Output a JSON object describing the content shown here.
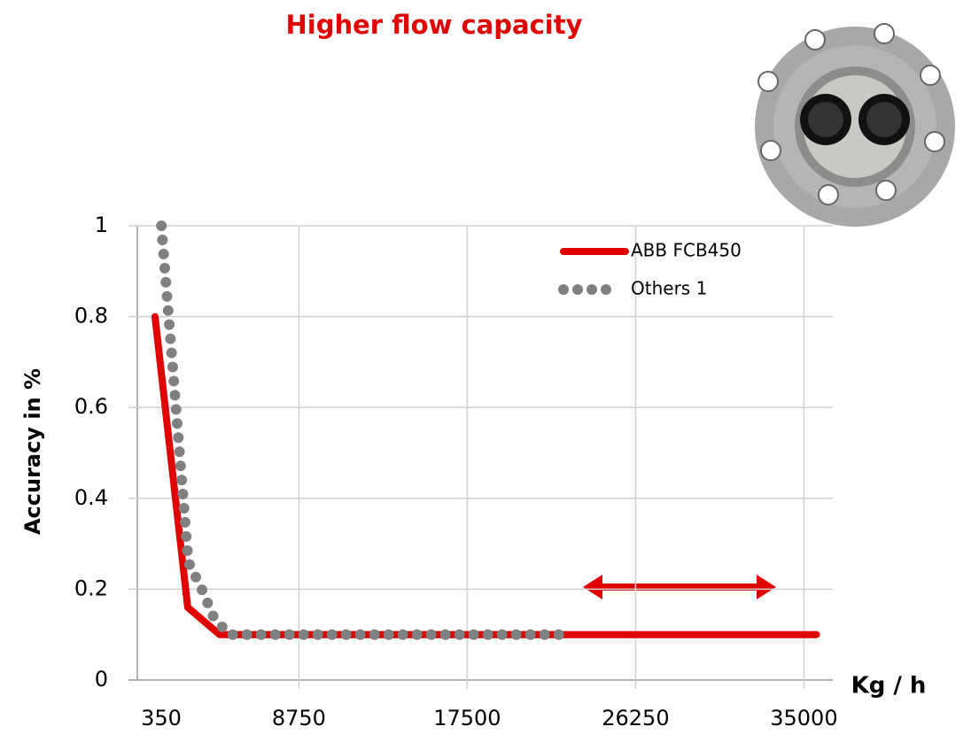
{
  "chart_data": {
    "type": "line",
    "title": "Higher flow capacity",
    "x_label": "Kg / h",
    "y_label": "Accuracy in %",
    "x": null,
    "series": [
      {
        "name": "ABB FCB450",
        "color": "#e00000",
        "style": "solid",
        "x": [
          1270,
          2970,
          4630,
          35650
        ],
        "values": [
          0.8,
          0.16,
          0.1,
          0.1
        ]
      },
      {
        "name": "Others 1",
        "color": "#808080",
        "style": "dotted",
        "x": [
          1600,
          3000,
          3700,
          4300,
          5100,
          22700
        ],
        "values": [
          1.0,
          0.26,
          0.2,
          0.14,
          0.1,
          0.1
        ]
      }
    ],
    "xlim": [
      350,
      36500
    ],
    "xticks": [
      350,
      8750,
      17500,
      26250,
      35000
    ],
    "ylim": [
      0,
      1
    ],
    "yticks": [
      0,
      0.2,
      0.4,
      0.6,
      0.8,
      1
    ],
    "grid": true
  }
}
